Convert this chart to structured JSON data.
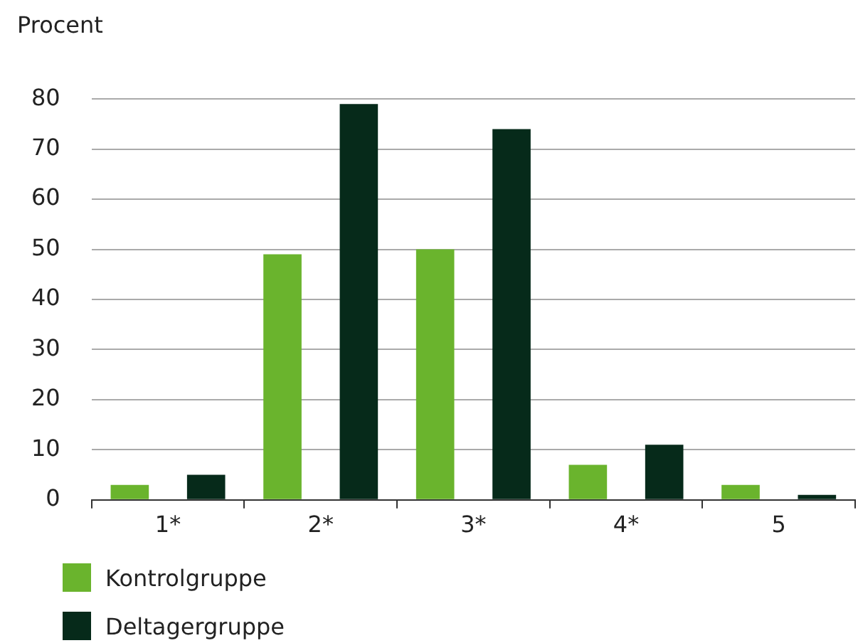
{
  "chart_data": {
    "type": "bar",
    "ylabel": "Procent",
    "categories": [
      "1*",
      "2*",
      "3*",
      "4*",
      "5"
    ],
    "series": [
      {
        "name": "Kontrolgruppe",
        "color": "#6ab42d",
        "values": [
          3,
          49,
          50,
          7,
          3
        ]
      },
      {
        "name": "Deltagergruppe",
        "color": "#062a1a",
        "values": [
          5,
          79,
          74,
          11,
          1
        ]
      }
    ],
    "ylim": [
      0,
      80
    ],
    "yticks": [
      0,
      10,
      20,
      30,
      40,
      50,
      60,
      70,
      80
    ],
    "grid": "y",
    "legend": "bottom left"
  }
}
